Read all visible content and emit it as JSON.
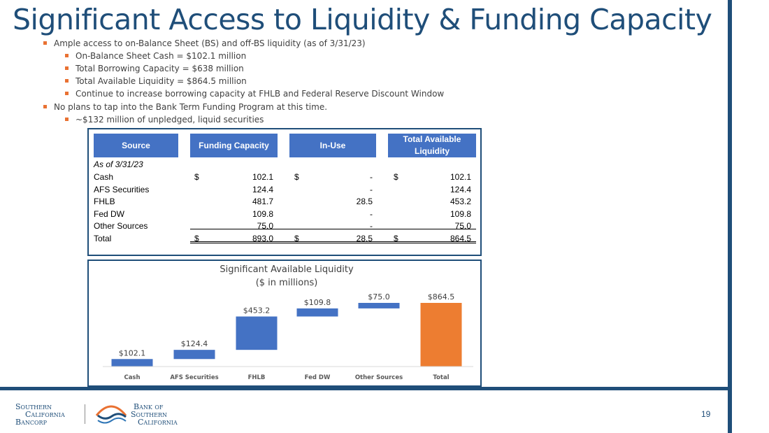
{
  "slide": {
    "title": "Significant Access to Liquidity & Funding Capacity",
    "page_number": "19",
    "bullets": [
      {
        "level": 1,
        "text": "Ample access to on-Balance Sheet (BS) and off-BS liquidity (as of 3/31/23)"
      },
      {
        "level": 2,
        "text": "On-Balance Sheet Cash = $102.1 million"
      },
      {
        "level": 2,
        "text": "Total Borrowing Capacity = $638 million"
      },
      {
        "level": 2,
        "text": "Total Available Liquidity = $864.5 million"
      },
      {
        "level": 2,
        "text": "Continue to increase borrowing capacity at FHLB and Federal Reserve Discount Window"
      },
      {
        "level": 1,
        "text": "No plans to tap into the Bank Term Funding Program at this time."
      },
      {
        "level": 2,
        "text": "~$132 million of unpledged, liquid securities"
      }
    ]
  },
  "table": {
    "headers": [
      "Source",
      "Funding Capacity",
      "In-Use",
      "Total Available Liquidity"
    ],
    "subheader": "As of 3/31/23",
    "rows": [
      {
        "label": "Cash",
        "cap_sym": "$",
        "cap": "102.1",
        "use_sym": "$",
        "use": "-",
        "avail_sym": "$",
        "avail": "102.1"
      },
      {
        "label": "AFS Securities",
        "cap_sym": "",
        "cap": "124.4",
        "use_sym": "",
        "use": "-",
        "avail_sym": "",
        "avail": "124.4"
      },
      {
        "label": "FHLB",
        "cap_sym": "",
        "cap": "481.7",
        "use_sym": "",
        "use": "28.5",
        "avail_sym": "",
        "avail": "453.2"
      },
      {
        "label": "Fed DW",
        "cap_sym": "",
        "cap": "109.8",
        "use_sym": "",
        "use": "-",
        "avail_sym": "",
        "avail": "109.8"
      },
      {
        "label": "Other Sources",
        "cap_sym": "",
        "cap": "75.0",
        "use_sym": "",
        "use": "-",
        "avail_sym": "",
        "avail": "75.0"
      },
      {
        "label": "Total",
        "cap_sym": "$",
        "cap": "893.0",
        "use_sym": "$",
        "use": "28.5",
        "avail_sym": "$",
        "avail": "864.5"
      }
    ]
  },
  "chart_data": {
    "type": "bar",
    "subtype": "waterfall",
    "title": "Significant Available Liquidity",
    "subtitle": "($ in millions)",
    "categories": [
      "Cash",
      "AFS Securities",
      "FHLB",
      "Fed DW",
      "Other Sources",
      "Total"
    ],
    "values": [
      102.1,
      124.4,
      453.2,
      109.8,
      75.0,
      864.5
    ],
    "data_labels": [
      "$102.1",
      "$124.4",
      "$453.2",
      "$109.8",
      "$75.0",
      "$864.5"
    ],
    "ylim": [
      0,
      900
    ],
    "grid": false,
    "colors": {
      "increase": "#4472c4",
      "total": "#ed7d31"
    }
  },
  "logos": {
    "left": [
      "Southern",
      "California",
      "Bancorp"
    ],
    "right": [
      "Bank of",
      "Southern",
      "California"
    ]
  },
  "colors": {
    "brand": "#1f4e79",
    "accent": "#e97132",
    "header": "#4472c4"
  }
}
